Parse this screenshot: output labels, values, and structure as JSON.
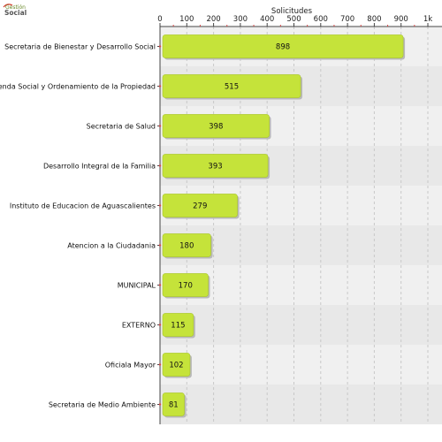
{
  "logo": {
    "line1": "Gestión",
    "line2": "Social"
  },
  "chart_data": {
    "type": "bar",
    "orientation": "horizontal",
    "title": "",
    "xlabel": "Solicitudes",
    "ylabel": "",
    "xlim": [
      0,
      1000
    ],
    "x_ticks": [
      0,
      100,
      200,
      300,
      400,
      500,
      600,
      700,
      800,
      900,
      1000
    ],
    "x_tick_labels": [
      "0",
      "100",
      "200",
      "300",
      "400",
      "500",
      "600",
      "700",
      "800",
      "900",
      "1k"
    ],
    "x_axis_position": "top",
    "grid": true,
    "categories": [
      "Secretaria de Bienestar y Desarrollo Social",
      "Vivienda Social y Ordenamiento de la Propiedad",
      "Secretaria de Salud",
      "Desarrollo Integral de la Familia",
      "Instituto de Educacion de Aguascalientes",
      "Atencion a la Ciudadania",
      "MUNICIPAL",
      "EXTERNO",
      "Oficiala Mayor",
      "Secretaria de Medio Ambiente"
    ],
    "values": [
      898,
      515,
      398,
      393,
      279,
      180,
      170,
      115,
      102,
      81
    ],
    "bar_color": "#c5e33a",
    "background_color": "#f0f0f0"
  }
}
